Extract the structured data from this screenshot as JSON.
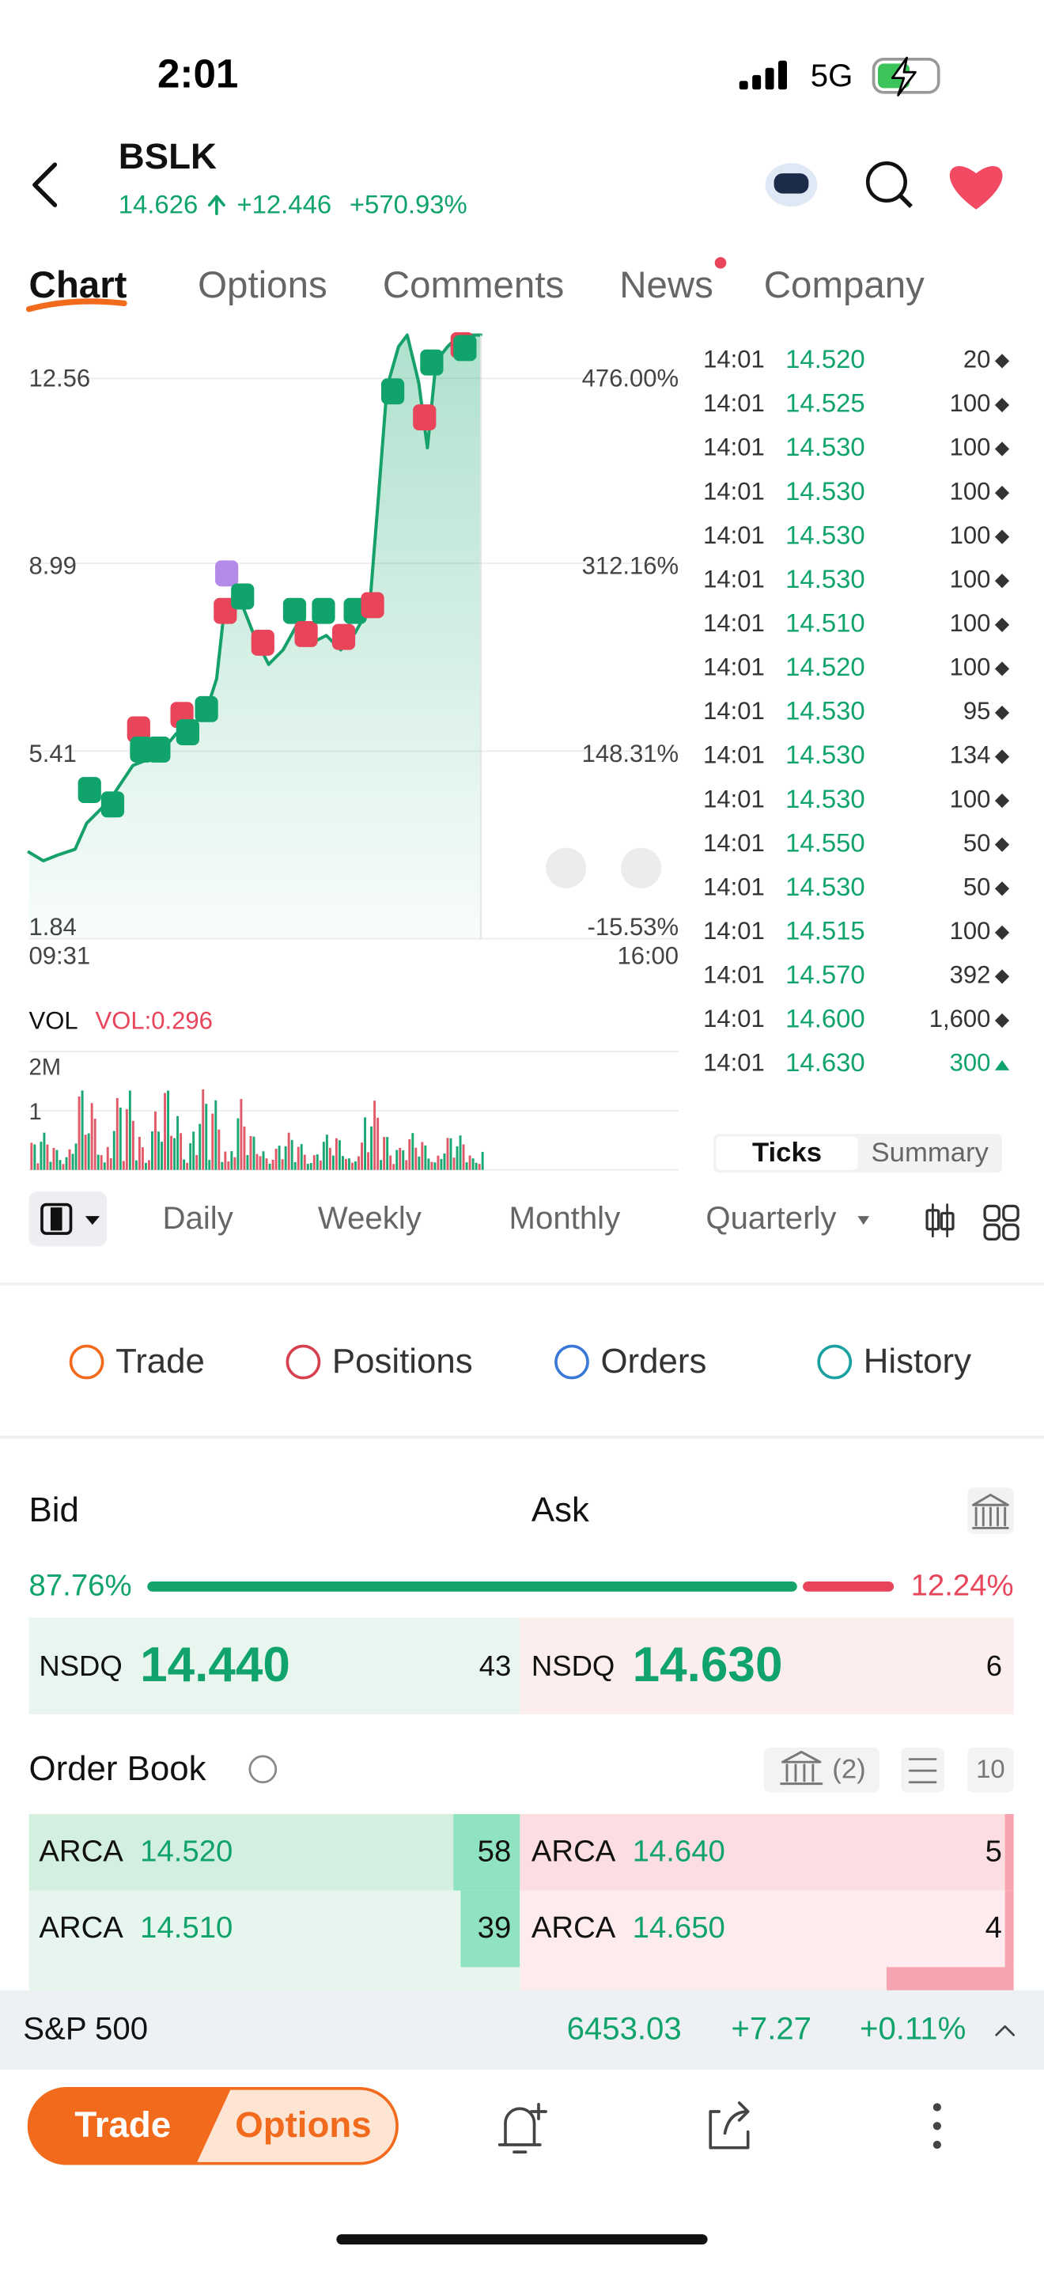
{
  "status": {
    "time": "2:01",
    "network": "5G"
  },
  "header": {
    "symbol": "BSLK",
    "price": "14.626",
    "change": "+12.446",
    "percent": "+570.93%"
  },
  "tabs": [
    "Chart",
    "Options",
    "Comments",
    "News",
    "Company"
  ],
  "chart": {
    "left_labels": [
      "12.56",
      "8.99",
      "5.41",
      "1.84"
    ],
    "right_labels": [
      "476.00%",
      "312.16%",
      "148.31%",
      "-15.53%"
    ],
    "x_labels": [
      "09:31",
      "16:00"
    ],
    "volume": {
      "title": "VOL",
      "value": "VOL:0.296",
      "labels": [
        "2M",
        "1"
      ]
    }
  },
  "ticks": {
    "rows": [
      [
        "14:01",
        "14.520",
        "20"
      ],
      [
        "14:01",
        "14.525",
        "100"
      ],
      [
        "14:01",
        "14.530",
        "100"
      ],
      [
        "14:01",
        "14.530",
        "100"
      ],
      [
        "14:01",
        "14.530",
        "100"
      ],
      [
        "14:01",
        "14.530",
        "100"
      ],
      [
        "14:01",
        "14.510",
        "100"
      ],
      [
        "14:01",
        "14.520",
        "100"
      ],
      [
        "14:01",
        "14.530",
        "95"
      ],
      [
        "14:01",
        "14.530",
        "134"
      ],
      [
        "14:01",
        "14.530",
        "100"
      ],
      [
        "14:01",
        "14.550",
        "50"
      ],
      [
        "14:01",
        "14.530",
        "50"
      ],
      [
        "14:01",
        "14.515",
        "100"
      ],
      [
        "14:01",
        "14.570",
        "392"
      ],
      [
        "14:01",
        "14.600",
        "1,600"
      ],
      [
        "14:01",
        "14.630",
        "300"
      ]
    ],
    "toggle": [
      "Ticks",
      "Summary"
    ]
  },
  "periods": [
    "Daily",
    "Weekly",
    "Monthly",
    "Quarterly"
  ],
  "actions": [
    "Trade",
    "Positions",
    "Orders",
    "History"
  ],
  "quote": {
    "bid_title": "Bid",
    "ask_title": "Ask",
    "bid_ratio": "87.76%",
    "ask_ratio": "12.24%",
    "bid": {
      "exchange": "NSDQ",
      "price": "14.440",
      "size": "43"
    },
    "ask": {
      "exchange": "NSDQ",
      "price": "14.630",
      "size": "6"
    }
  },
  "order_book": {
    "title": "Order Book",
    "venues": "(2)",
    "depth": "10",
    "bids": [
      [
        "ARCA",
        "14.520",
        "58"
      ],
      [
        "ARCA",
        "14.510",
        "39"
      ]
    ],
    "asks": [
      [
        "ARCA",
        "14.640",
        "5"
      ],
      [
        "ARCA",
        "14.650",
        "4"
      ]
    ]
  },
  "index_bar": {
    "name": "S&P 500",
    "value": "6453.03",
    "change": "+7.27",
    "percent": "+0.11%"
  },
  "bottom": {
    "trade": "Trade",
    "options": "Options"
  }
}
